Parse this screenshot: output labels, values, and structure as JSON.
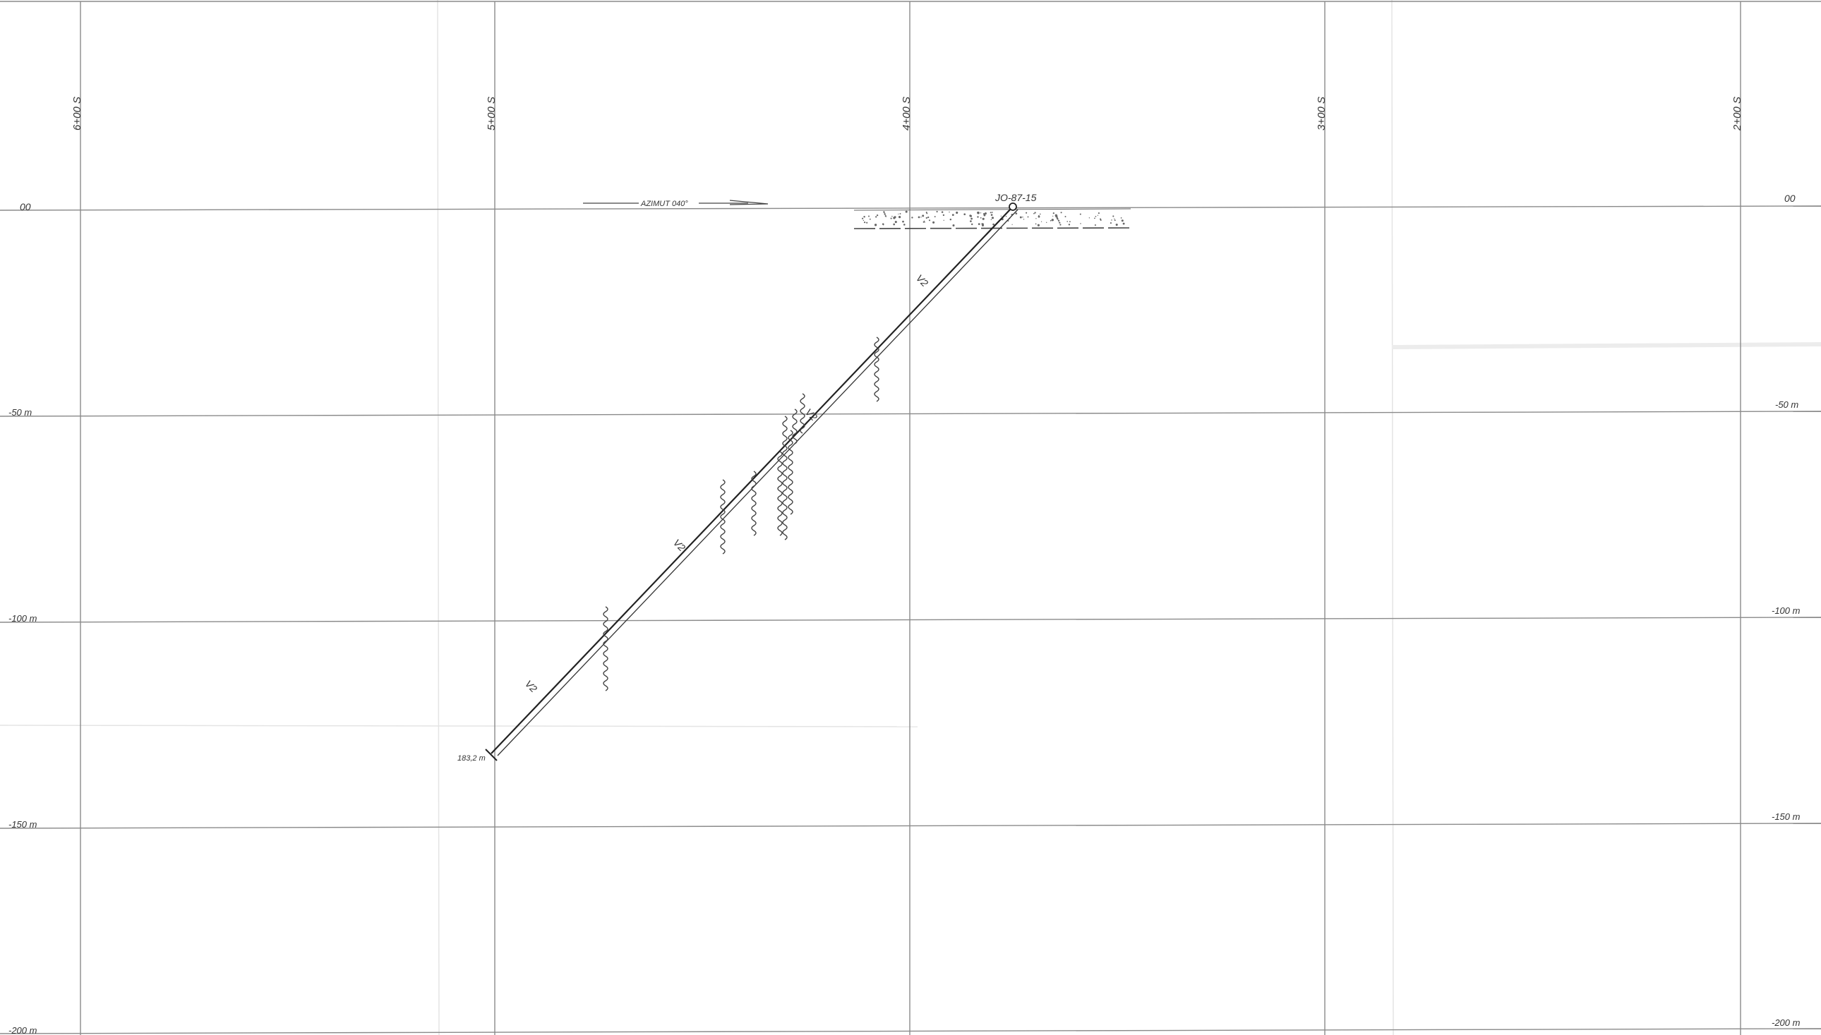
{
  "sections": [
    {
      "label": "6+00 S"
    },
    {
      "label": "5+00 S"
    },
    {
      "label": "4+00 S"
    },
    {
      "label": "3+00 S"
    },
    {
      "label": "2+00 S"
    }
  ],
  "elevations": [
    {
      "value": 0,
      "left_label": "00",
      "right_label": "00"
    },
    {
      "value": -50,
      "left_label": "-50 m",
      "right_label": "-50 m"
    },
    {
      "value": -100,
      "left_label": "-100 m",
      "right_label": "-100 m"
    },
    {
      "value": -150,
      "left_label": "-150 m",
      "right_label": "-150 m"
    },
    {
      "value": -200,
      "left_label": "-200 m",
      "right_label": "-200 m"
    }
  ],
  "azimuth_label": "AZIMUT 040°",
  "hole": {
    "id": "JO-87-15",
    "end_depth_label": "183,2 m"
  },
  "unit_labels": [
    "V2",
    "V2",
    "V2",
    "V2"
  ]
}
